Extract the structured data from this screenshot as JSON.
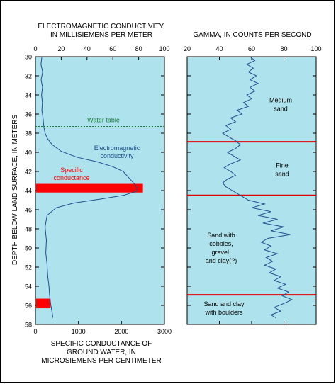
{
  "chart_data": [
    {
      "type": "line",
      "panel": "left",
      "top_axis_title_line1": "ELECTROMAGNETIC CONDUCTIVITY,",
      "top_axis_title_line2": "IN MILLISIEMENS PER METER",
      "bottom_axis_title_line1": "SPECIFIC CONDUCTANCE OF",
      "bottom_axis_title_line2": "GROUND WATER,  IN",
      "bottom_axis_title_line3": "MICROSIEMENS PER CENTIMETER",
      "ylabel": "DEPTH BELOW LAND SURFACE, IN METERS",
      "ylim": [
        30,
        58
      ],
      "y_reversed": true,
      "y_ticks": [
        "30",
        "32",
        "34",
        "36",
        "38",
        "40",
        "42",
        "44",
        "46",
        "48",
        "50",
        "52",
        "54",
        "56",
        "58"
      ],
      "top_xlim": [
        0,
        100
      ],
      "top_ticks": [
        "0",
        "20",
        "40",
        "60",
        "80",
        "100"
      ],
      "bottom_xlim": [
        0,
        3000
      ],
      "bottom_ticks": [
        "0",
        "1000",
        "2000",
        "3000"
      ],
      "grid": false,
      "water_table": {
        "depth": 37.3,
        "label": "Water table"
      },
      "series": [
        {
          "name": "Electromagnetic conductivity",
          "label_line1": "Electromagnetic",
          "label_line2": "conductivity",
          "axis": "top",
          "points": [
            [
              5,
              30.0
            ],
            [
              4.3,
              30.8
            ],
            [
              5.6,
              31.6
            ],
            [
              4.4,
              32.4
            ],
            [
              5.5,
              33.2
            ],
            [
              4.7,
              34.0
            ],
            [
              5.4,
              34.8
            ],
            [
              5.0,
              35.6
            ],
            [
              5.9,
              36.4
            ],
            [
              6.5,
              37.3
            ],
            [
              7.5,
              38.0
            ],
            [
              9.5,
              38.6
            ],
            [
              13,
              39.2
            ],
            [
              20,
              39.9
            ],
            [
              32,
              40.5
            ],
            [
              48,
              41.0
            ],
            [
              60,
              41.5
            ],
            [
              68,
              42.0
            ],
            [
              72,
              42.6
            ],
            [
              76,
              43.2
            ],
            [
              79,
              43.7
            ],
            [
              78,
              44.1
            ],
            [
              68,
              44.5
            ],
            [
              50,
              44.9
            ],
            [
              30,
              45.3
            ],
            [
              16,
              45.8
            ],
            [
              9,
              46.6
            ],
            [
              7.5,
              47.8
            ],
            [
              8.5,
              49.2
            ],
            [
              8.0,
              50.5
            ],
            [
              9.0,
              51.7
            ],
            [
              9.5,
              52.9
            ],
            [
              10.5,
              54.0
            ],
            [
              11.0,
              55.0
            ],
            [
              12.0,
              56.0
            ],
            [
              13.0,
              56.8
            ],
            [
              13.5,
              57.3
            ]
          ]
        },
        {
          "name": "Specific conductance",
          "label_line1": "Specific",
          "label_line2": "conductance",
          "axis": "bottom",
          "color": "#ff0000",
          "bars": [
            {
              "value": 2500,
              "top": 43.3,
              "bottom": 44.2
            },
            {
              "value": 350,
              "top": 55.3,
              "bottom": 56.3
            }
          ]
        }
      ]
    },
    {
      "type": "line",
      "panel": "right",
      "top_axis_title": "GAMMA,  IN COUNTS PER SECOND",
      "ylim": [
        30,
        58
      ],
      "y_reversed": true,
      "xlim": [
        20,
        100
      ],
      "top_ticks": [
        "20",
        "40",
        "60",
        "80",
        "100"
      ],
      "grid": false,
      "boundaries": [
        38.9,
        44.5,
        54.9
      ],
      "units": [
        {
          "line1": "Medium",
          "line2": "sand",
          "line3": "",
          "line4": "",
          "depth": 35.0
        },
        {
          "line1": "Fine",
          "line2": "sand",
          "line3": "",
          "line4": "",
          "depth": 41.8
        },
        {
          "line1": "Sand with",
          "line2": "cobbles,",
          "line3": "gravel,",
          "line4": "and clay(?)",
          "depth": 50.0
        },
        {
          "line1": "Sand and clay",
          "line2": "with boulders",
          "line3": "",
          "line4": "",
          "depth": 56.3
        }
      ],
      "series": [
        {
          "name": "Gamma",
          "points": [
            [
              59,
              30.0
            ],
            [
              62,
              30.4
            ],
            [
              57,
              30.8
            ],
            [
              61,
              31.2
            ],
            [
              58,
              31.6
            ],
            [
              63,
              32.0
            ],
            [
              59,
              32.4
            ],
            [
              64,
              32.8
            ],
            [
              59,
              33.2
            ],
            [
              62,
              33.6
            ],
            [
              57,
              34.0
            ],
            [
              60,
              34.4
            ],
            [
              55,
              34.8
            ],
            [
              58,
              35.2
            ],
            [
              51,
              35.6
            ],
            [
              54,
              36.0
            ],
            [
              47,
              36.4
            ],
            [
              50,
              36.8
            ],
            [
              44,
              37.2
            ],
            [
              47,
              37.6
            ],
            [
              42,
              38.0
            ],
            [
              46,
              38.4
            ],
            [
              50,
              38.8
            ],
            [
              53,
              39.2
            ],
            [
              50,
              39.6
            ],
            [
              45,
              40.0
            ],
            [
              49,
              40.4
            ],
            [
              53,
              40.8
            ],
            [
              47,
              41.2
            ],
            [
              43,
              41.6
            ],
            [
              47,
              42.0
            ],
            [
              50,
              42.4
            ],
            [
              45,
              42.8
            ],
            [
              42,
              43.2
            ],
            [
              44,
              43.6
            ],
            [
              48,
              44.0
            ],
            [
              53,
              44.5
            ],
            [
              58,
              45.0
            ],
            [
              68,
              45.4
            ],
            [
              60,
              45.8
            ],
            [
              72,
              46.2
            ],
            [
              64,
              46.6
            ],
            [
              76,
              47.0
            ],
            [
              67,
              47.4
            ],
            [
              80,
              47.8
            ],
            [
              72,
              48.2
            ],
            [
              84,
              48.6
            ],
            [
              70,
              49.0
            ],
            [
              66,
              49.4
            ],
            [
              72,
              49.8
            ],
            [
              68,
              50.2
            ],
            [
              76,
              50.6
            ],
            [
              69,
              51.0
            ],
            [
              73,
              51.4
            ],
            [
              68,
              51.8
            ],
            [
              75,
              52.2
            ],
            [
              71,
              52.6
            ],
            [
              78,
              53.0
            ],
            [
              74,
              53.4
            ],
            [
              81,
              53.8
            ],
            [
              76,
              54.2
            ],
            [
              83,
              54.6
            ],
            [
              79,
              55.0
            ],
            [
              85,
              55.4
            ],
            [
              80,
              55.8
            ],
            [
              74,
              56.2
            ],
            [
              78,
              56.6
            ],
            [
              72,
              57.0
            ],
            [
              75,
              57.3
            ]
          ]
        }
      ]
    }
  ]
}
